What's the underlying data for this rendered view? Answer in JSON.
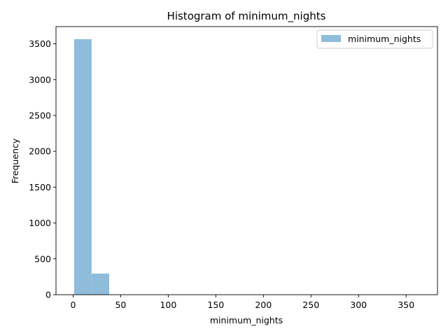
{
  "chart_data": {
    "type": "bar",
    "title": "Histogram of minimum_nights",
    "xlabel": "minimum_nights",
    "ylabel": "Frequency",
    "xlim": [
      -18,
      383
    ],
    "ylim": [
      0,
      3740
    ],
    "x_ticks": [
      0,
      50,
      100,
      150,
      200,
      250,
      300,
      350
    ],
    "y_ticks": [
      0,
      500,
      1000,
      1500,
      2000,
      2500,
      3000,
      3500
    ],
    "bin_edges": [
      1,
      19.45,
      37.9,
      56.35,
      74.8,
      93.25,
      111.7,
      130.15,
      148.6,
      167.05,
      185.5,
      203.95,
      222.4,
      240.85,
      259.3,
      277.75,
      296.2,
      314.65,
      333.1,
      351.55,
      370
    ],
    "series": [
      {
        "name": "minimum_nights",
        "values": [
          3565,
          295,
          3,
          2,
          1,
          1,
          0,
          0,
          0,
          0,
          0,
          0,
          0,
          0,
          0,
          0,
          0,
          0,
          0,
          2
        ]
      }
    ],
    "bar_color": "#8fbcdb",
    "legend_position": "upper right",
    "grid": false
  }
}
